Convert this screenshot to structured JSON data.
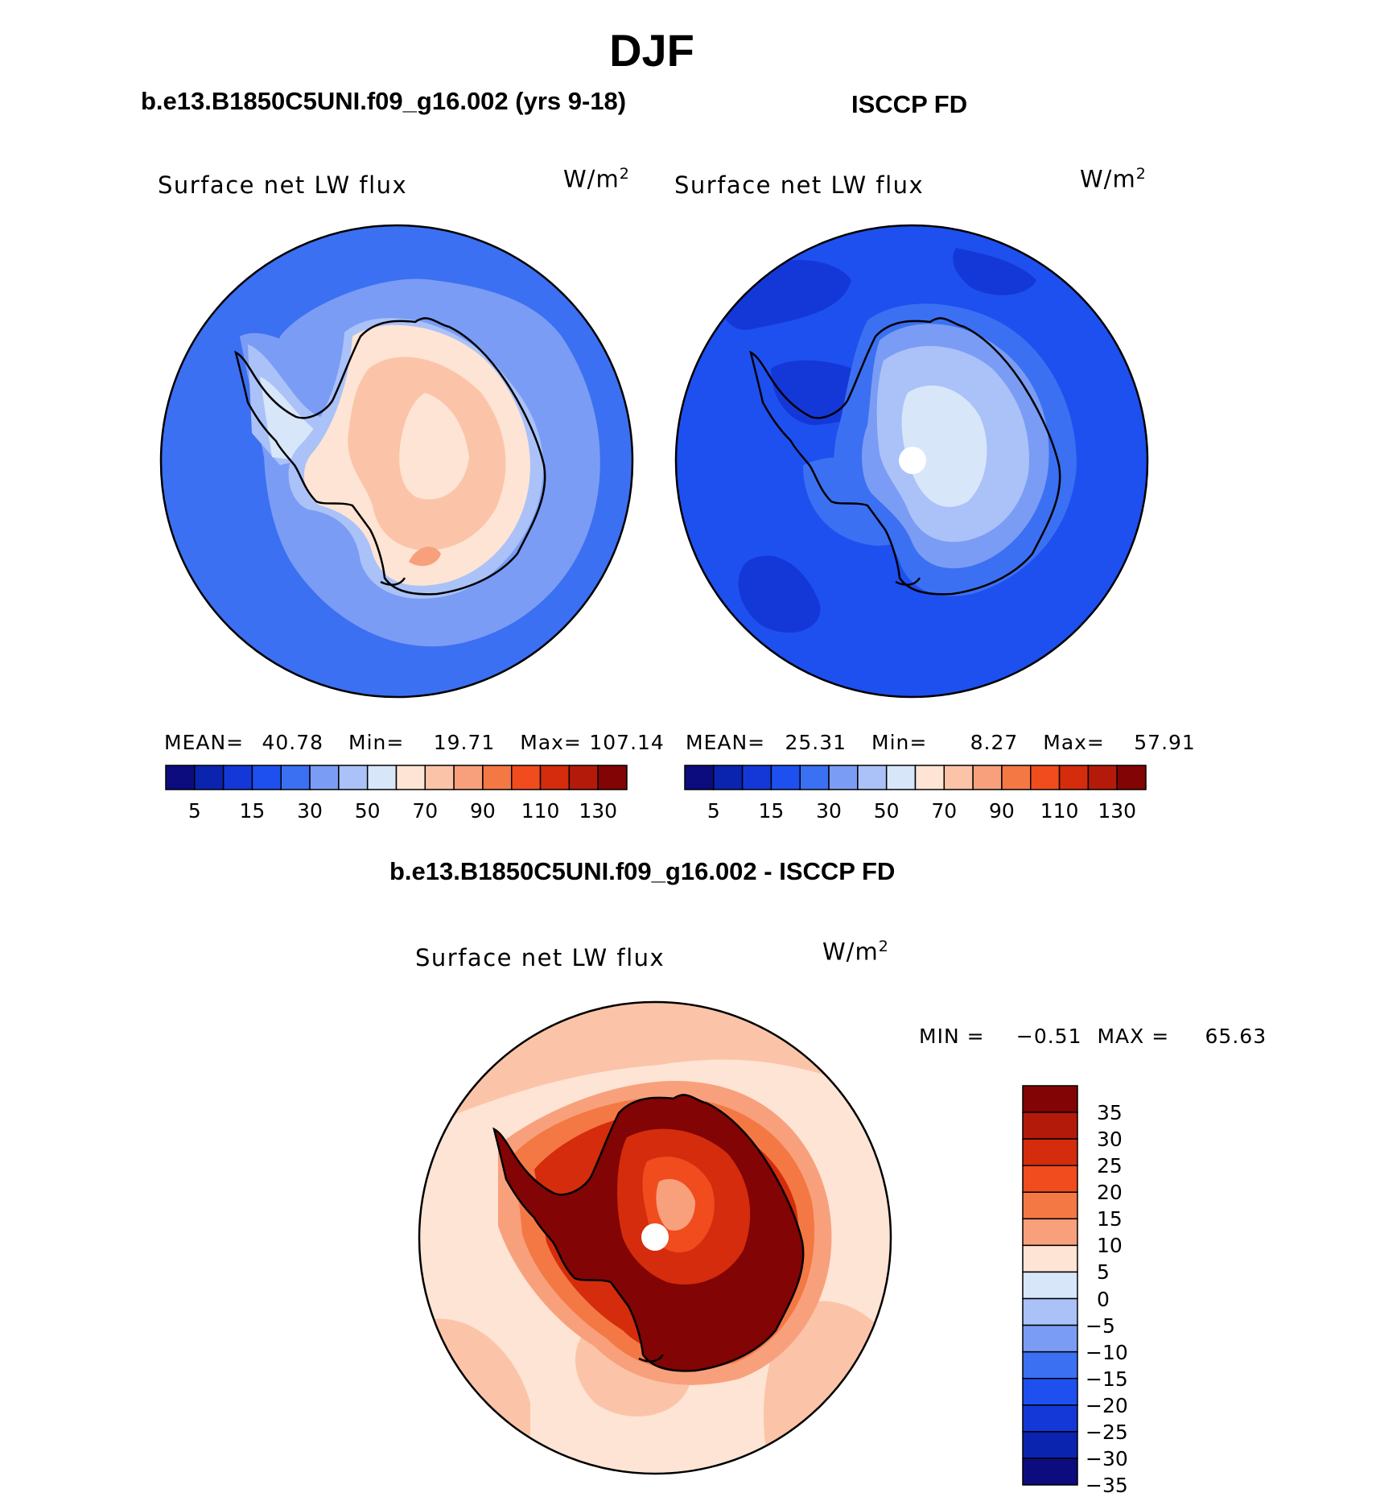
{
  "figure": {
    "title": "DJF",
    "units": "W/m",
    "units_sup": "2"
  },
  "panels": [
    {
      "title": "b.e13.B1850C5UNI.f09_g16.002 (yrs 9-18)",
      "label": "Surface net LW flux",
      "stats": {
        "mean_label": "MEAN=",
        "mean": "40.78",
        "min_label": "Min=",
        "min": "19.71",
        "max_label": "Max=",
        "max": "107.14"
      }
    },
    {
      "title": "ISCCP FD",
      "label": "Surface net LW flux",
      "stats": {
        "mean_label": "MEAN=",
        "mean": "25.31",
        "min_label": "Min=",
        "min": "8.27",
        "max_label": "Max=",
        "max": "57.91"
      }
    },
    {
      "title": "b.e13.B1850C5UNI.f09_g16.002 - ISCCP FD",
      "label": "Surface net LW flux",
      "stats": {
        "min_label": "MIN =",
        "min": "−0.51",
        "max_label": "MAX =",
        "max": "65.63"
      }
    }
  ],
  "colorbar_top": {
    "colors": [
      "#0c0c7e",
      "#0a24b0",
      "#1438d8",
      "#1e50f0",
      "#3c70f2",
      "#7a9cf4",
      "#aac2f8",
      "#d8e6fa",
      "#fde4d4",
      "#fbc4a8",
      "#f8a07c",
      "#f47844",
      "#f04c1e",
      "#d42c0c",
      "#b41a0a",
      "#820404"
    ],
    "labels": [
      "5",
      "15",
      "30",
      "50",
      "70",
      "90",
      "110",
      "130"
    ]
  },
  "colorbar_diff": {
    "colors": [
      "#820404",
      "#b41a0a",
      "#d42c0c",
      "#f04c1e",
      "#f47844",
      "#f8a07c",
      "#fde4d4",
      "#d8e6fa",
      "#aac2f8",
      "#7a9cf4",
      "#3c70f2",
      "#1e50f0",
      "#1438d8",
      "#0a24b0",
      "#0c0c7e"
    ],
    "labels": [
      "35",
      "30",
      "25",
      "20",
      "15",
      "10",
      "5",
      "0",
      "−5",
      "−10",
      "−15",
      "−20",
      "−25",
      "−30",
      "−35"
    ]
  }
}
